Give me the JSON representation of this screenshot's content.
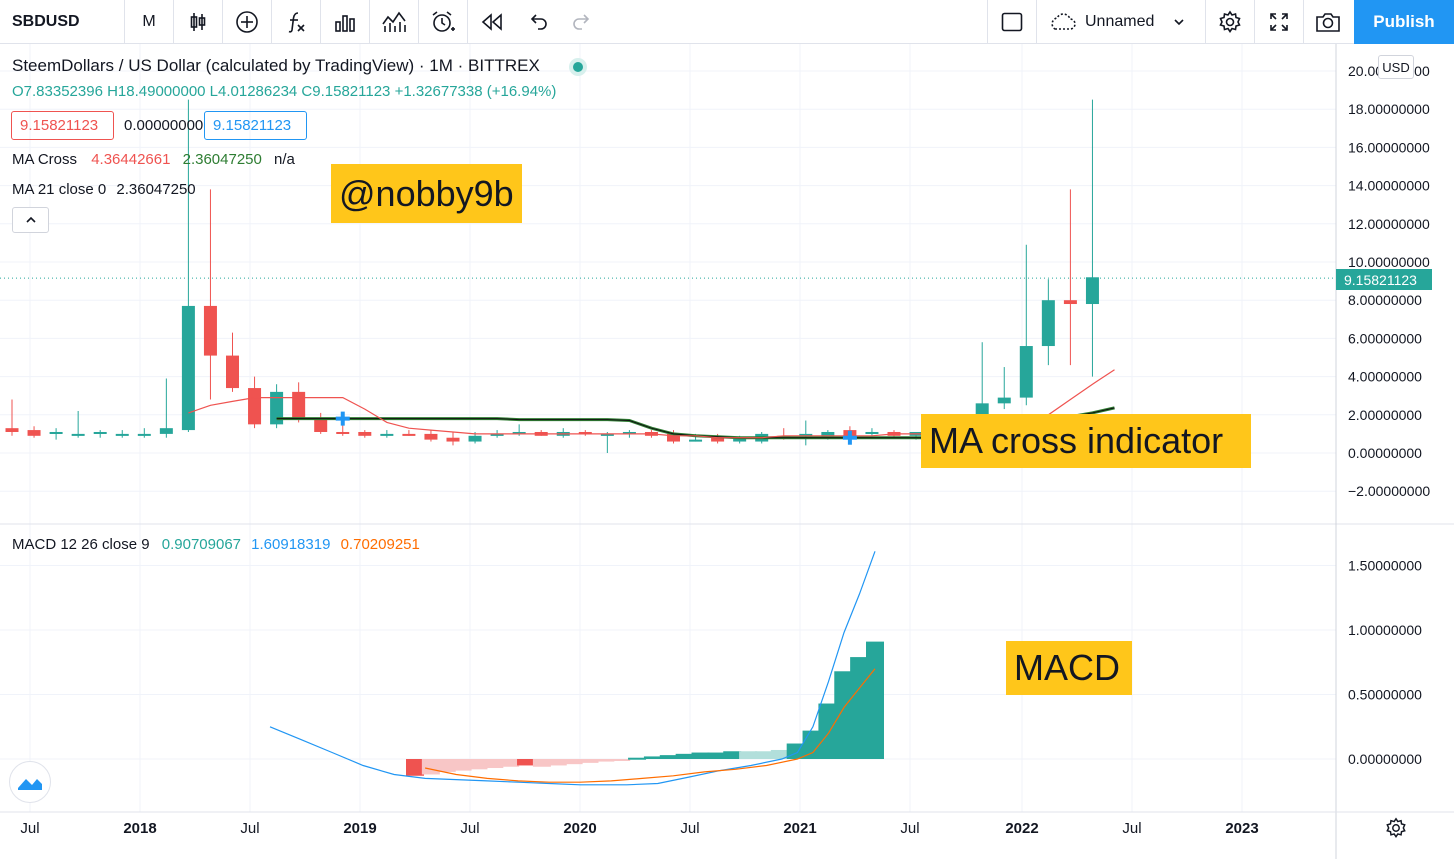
{
  "toolbar": {
    "symbol": "SBDUSD",
    "interval": "M",
    "layout_name": "Unnamed",
    "publish_label": "Publish"
  },
  "legend": {
    "title": "SteemDollars / US Dollar (calculated by TradingView) · 1M · BITTREX",
    "ohlc": "O7.83352396 H18.49000000 L4.01286234 C9.15821123 +1.32677338 (+16.94%)",
    "bid": "9.15821123",
    "spread": "0.00000000",
    "ask": "9.15821123",
    "ma_cross_name": "MA Cross",
    "ma_cross_v1": "4.36442661",
    "ma_cross_v2": "2.36047250",
    "ma_cross_v3": "n/a",
    "ma21_name": "MA 21 close 0",
    "ma21_value": "2.36047250",
    "macd_name": "MACD 12 26 close 9",
    "macd_v1": "0.90709067",
    "macd_v2": "1.60918319",
    "macd_v3": "0.70209251"
  },
  "annotations": {
    "author": "@nobby9b",
    "ma_note": "MA cross indicator",
    "macd_note": "MACD"
  },
  "price_axis": {
    "currency": "USD",
    "last_price": "9.15821123",
    "ticks": [
      "20.00000000",
      "18.00000000",
      "16.00000000",
      "14.00000000",
      "12.00000000",
      "10.00000000",
      "8.00000000",
      "6.00000000",
      "4.00000000",
      "2.00000000",
      "0.00000000",
      "−2.00000000"
    ],
    "macd_ticks": [
      "1.50000000",
      "1.00000000",
      "0.50000000",
      "0.00000000"
    ]
  },
  "time_axis": {
    "labels": [
      "Jul",
      "2018",
      "Jul",
      "2019",
      "Jul",
      "2020",
      "Jul",
      "2021",
      "Jul",
      "2022",
      "Jul",
      "2023"
    ]
  },
  "colors": {
    "up": "#26a69a",
    "down": "#ef5350",
    "ma_fast": "#ef5350",
    "ma_slow": "#2e7d32",
    "macd_line": "#2196f3",
    "signal_line": "#ff6d00",
    "accent": "#2196f3",
    "note_bg": "#ffc61a"
  },
  "chart_data": [
    {
      "type": "candlestick",
      "title": "SteemDollars / US Dollar (calculated by TradingView)",
      "interval": "1M",
      "ylim": [
        -3,
        21
      ],
      "candles": [
        {
          "t": "2017-04",
          "o": 1.3,
          "h": 2.8,
          "l": 0.9,
          "c": 1.1
        },
        {
          "t": "2017-05",
          "o": 1.2,
          "h": 1.4,
          "l": 0.8,
          "c": 0.9
        },
        {
          "t": "2017-06",
          "o": 1.0,
          "h": 1.3,
          "l": 0.7,
          "c": 1.1
        },
        {
          "t": "2017-07",
          "o": 1.0,
          "h": 2.2,
          "l": 0.8,
          "c": 1.0
        },
        {
          "t": "2017-08",
          "o": 1.0,
          "h": 1.2,
          "l": 0.8,
          "c": 1.1
        },
        {
          "t": "2017-09",
          "o": 1.0,
          "h": 1.2,
          "l": 0.8,
          "c": 1.0
        },
        {
          "t": "2017-10",
          "o": 1.0,
          "h": 1.3,
          "l": 0.8,
          "c": 1.0
        },
        {
          "t": "2017-11",
          "o": 1.0,
          "h": 3.9,
          "l": 0.8,
          "c": 1.3
        },
        {
          "t": "2017-12",
          "o": 1.2,
          "h": 18.5,
          "l": 1.1,
          "c": 7.7
        },
        {
          "t": "2018-01",
          "o": 7.7,
          "h": 13.8,
          "l": 2.8,
          "c": 5.1
        },
        {
          "t": "2018-02",
          "o": 5.1,
          "h": 6.3,
          "l": 3.2,
          "c": 3.4
        },
        {
          "t": "2018-03",
          "o": 3.4,
          "h": 4.0,
          "l": 1.3,
          "c": 1.5
        },
        {
          "t": "2018-04",
          "o": 1.5,
          "h": 3.6,
          "l": 1.3,
          "c": 3.2
        },
        {
          "t": "2018-05",
          "o": 3.2,
          "h": 3.7,
          "l": 1.6,
          "c": 1.8
        },
        {
          "t": "2018-06",
          "o": 1.8,
          "h": 2.1,
          "l": 1.0,
          "c": 1.1
        },
        {
          "t": "2018-07",
          "o": 1.1,
          "h": 1.5,
          "l": 0.9,
          "c": 1.0
        },
        {
          "t": "2018-08",
          "o": 1.1,
          "h": 1.2,
          "l": 0.8,
          "c": 0.9
        },
        {
          "t": "2018-09",
          "o": 0.9,
          "h": 1.2,
          "l": 0.8,
          "c": 1.0
        },
        {
          "t": "2018-10",
          "o": 1.0,
          "h": 1.2,
          "l": 0.9,
          "c": 0.9
        },
        {
          "t": "2018-11",
          "o": 1.0,
          "h": 1.2,
          "l": 0.6,
          "c": 0.7
        },
        {
          "t": "2018-12",
          "o": 0.8,
          "h": 1.1,
          "l": 0.4,
          "c": 0.6
        },
        {
          "t": "2019-01",
          "o": 0.6,
          "h": 1.1,
          "l": 0.5,
          "c": 0.9
        },
        {
          "t": "2019-02",
          "o": 0.9,
          "h": 1.2,
          "l": 0.8,
          "c": 1.0
        },
        {
          "t": "2019-03",
          "o": 1.0,
          "h": 1.5,
          "l": 0.9,
          "c": 1.1
        },
        {
          "t": "2019-04",
          "o": 1.1,
          "h": 1.2,
          "l": 0.9,
          "c": 0.9
        },
        {
          "t": "2019-05",
          "o": 0.9,
          "h": 1.3,
          "l": 0.8,
          "c": 1.1
        },
        {
          "t": "2019-06",
          "o": 1.1,
          "h": 1.2,
          "l": 0.9,
          "c": 1.0
        },
        {
          "t": "2019-07",
          "o": 0.9,
          "h": 1.1,
          "l": 0.0,
          "c": 1.0
        },
        {
          "t": "2019-08",
          "o": 1.0,
          "h": 1.2,
          "l": 0.8,
          "c": 1.1
        },
        {
          "t": "2019-09",
          "o": 1.1,
          "h": 1.2,
          "l": 0.8,
          "c": 0.9
        },
        {
          "t": "2019-10",
          "o": 1.0,
          "h": 1.2,
          "l": 0.5,
          "c": 0.6
        },
        {
          "t": "2019-11",
          "o": 0.7,
          "h": 1.0,
          "l": 0.6,
          "c": 0.7
        },
        {
          "t": "2019-12",
          "o": 0.8,
          "h": 1.0,
          "l": 0.5,
          "c": 0.6
        },
        {
          "t": "2020-01",
          "o": 0.6,
          "h": 0.9,
          "l": 0.5,
          "c": 0.8
        },
        {
          "t": "2020-02",
          "o": 0.6,
          "h": 1.1,
          "l": 0.5,
          "c": 1.0
        },
        {
          "t": "2020-03",
          "o": 0.9,
          "h": 1.3,
          "l": 0.7,
          "c": 0.8
        },
        {
          "t": "2020-04",
          "o": 0.9,
          "h": 1.7,
          "l": 0.4,
          "c": 1.0
        },
        {
          "t": "2020-05",
          "o": 0.8,
          "h": 1.2,
          "l": 0.7,
          "c": 1.1
        },
        {
          "t": "2020-06",
          "o": 1.2,
          "h": 1.4,
          "l": 0.8,
          "c": 0.9
        },
        {
          "t": "2020-07",
          "o": 1.0,
          "h": 1.3,
          "l": 0.9,
          "c": 1.1
        },
        {
          "t": "2020-08",
          "o": 1.1,
          "h": 1.2,
          "l": 0.8,
          "c": 0.9
        },
        {
          "t": "2020-09",
          "o": 0.9,
          "h": 1.1,
          "l": 0.7,
          "c": 1.1
        },
        {
          "t": "2020-10",
          "o": 1.1,
          "h": 1.3,
          "l": 0.8,
          "c": 1.0
        },
        {
          "t": "2020-11",
          "o": 1.0,
          "h": 1.2,
          "l": 0.8,
          "c": 1.2
        },
        {
          "t": "2020-12",
          "o": 1.1,
          "h": 5.8,
          "l": 0.8,
          "c": 2.6
        },
        {
          "t": "2021-01",
          "o": 2.6,
          "h": 4.5,
          "l": 2.3,
          "c": 2.9
        },
        {
          "t": "2021-02",
          "o": 2.9,
          "h": 10.9,
          "l": 2.5,
          "c": 5.6
        },
        {
          "t": "2021-03",
          "o": 5.6,
          "h": 9.1,
          "l": 4.6,
          "c": 8.0
        },
        {
          "t": "2021-04",
          "o": 8.0,
          "h": 13.8,
          "l": 4.6,
          "c": 7.8
        },
        {
          "t": "2021-05",
          "o": 7.8,
          "h": 18.5,
          "l": 4.0,
          "c": 9.2
        }
      ],
      "series": [
        {
          "name": "MA Cross",
          "values": [
            [
              8,
              2.1
            ],
            [
              9,
              2.5
            ],
            [
              10,
              2.7
            ],
            [
              11,
              2.9
            ],
            [
              12,
              2.9
            ],
            [
              13,
              2.9
            ],
            [
              14,
              2.9
            ],
            [
              15,
              2.9
            ],
            [
              16,
              2.3
            ],
            [
              17,
              1.6
            ],
            [
              18,
              1.3
            ],
            [
              19,
              1.2
            ],
            [
              20,
              1.1
            ],
            [
              21,
              1.0
            ],
            [
              22,
              1.0
            ],
            [
              23,
              1.0
            ],
            [
              24,
              1.0
            ],
            [
              25,
              1.0
            ],
            [
              26,
              1.0
            ],
            [
              27,
              1.0
            ],
            [
              28,
              1.0
            ],
            [
              29,
              1.0
            ],
            [
              30,
              0.9
            ],
            [
              31,
              0.9
            ],
            [
              32,
              0.8
            ],
            [
              33,
              0.8
            ],
            [
              34,
              0.8
            ],
            [
              35,
              0.9
            ],
            [
              36,
              0.9
            ],
            [
              37,
              0.9
            ],
            [
              38,
              0.9
            ],
            [
              39,
              0.9
            ],
            [
              40,
              1.0
            ],
            [
              41,
              1.0
            ],
            [
              42,
              1.0
            ],
            [
              43,
              1.0
            ],
            [
              44,
              1.0
            ],
            [
              45,
              1.2
            ],
            [
              46,
              1.5
            ],
            [
              47,
              2.0
            ],
            [
              48,
              2.8
            ],
            [
              49,
              3.6
            ],
            [
              50,
              4.36
            ]
          ]
        },
        {
          "name": "MA 21 close 0",
          "values": [
            [
              12,
              1.8
            ],
            [
              13,
              1.8
            ],
            [
              14,
              1.8
            ],
            [
              15,
              1.8
            ],
            [
              16,
              1.8
            ],
            [
              17,
              1.8
            ],
            [
              18,
              1.8
            ],
            [
              19,
              1.8
            ],
            [
              20,
              1.8
            ],
            [
              21,
              1.8
            ],
            [
              22,
              1.8
            ],
            [
              23,
              1.75
            ],
            [
              24,
              1.75
            ],
            [
              25,
              1.75
            ],
            [
              26,
              1.75
            ],
            [
              27,
              1.75
            ],
            [
              28,
              1.7
            ],
            [
              29,
              1.3
            ],
            [
              30,
              1.0
            ],
            [
              31,
              0.9
            ],
            [
              32,
              0.85
            ],
            [
              33,
              0.8
            ],
            [
              34,
              0.8
            ],
            [
              35,
              0.8
            ],
            [
              36,
              0.8
            ],
            [
              37,
              0.8
            ],
            [
              38,
              0.8
            ],
            [
              39,
              0.8
            ],
            [
              40,
              0.8
            ],
            [
              41,
              0.8
            ],
            [
              42,
              0.8
            ],
            [
              43,
              0.85
            ],
            [
              44,
              0.9
            ],
            [
              45,
              1.1
            ],
            [
              46,
              1.3
            ],
            [
              47,
              1.6
            ],
            [
              48,
              1.9
            ],
            [
              49,
              2.1
            ],
            [
              50,
              2.36
            ]
          ]
        }
      ],
      "markers": [
        {
          "index": 15,
          "value": 1.8
        },
        {
          "index": 38,
          "value": 0.8
        }
      ]
    },
    {
      "type": "macd",
      "title": "MACD 12 26 close 9",
      "ylim": [
        -0.35,
        1.75
      ],
      "macd": [
        [
          15,
          0.25
        ],
        [
          17,
          0.15
        ],
        [
          19,
          0.05
        ],
        [
          21,
          -0.05
        ],
        [
          23,
          -0.12
        ],
        [
          25,
          -0.15
        ],
        [
          27,
          -0.16
        ],
        [
          29,
          -0.17
        ],
        [
          31,
          -0.18
        ],
        [
          33,
          -0.19
        ],
        [
          35,
          -0.2
        ],
        [
          36,
          -0.2
        ],
        [
          37,
          -0.2
        ],
        [
          38,
          -0.2
        ],
        [
          40,
          -0.19
        ],
        [
          42,
          -0.14
        ],
        [
          44,
          -0.09
        ],
        [
          46,
          -0.05
        ],
        [
          48,
          0.0
        ],
        [
          49,
          0.05
        ],
        [
          50,
          0.25
        ],
        [
          51,
          0.6
        ],
        [
          52,
          0.98
        ],
        [
          53,
          1.28
        ],
        [
          54,
          1.61
        ]
      ],
      "signal": [
        [
          25,
          -0.07
        ],
        [
          27,
          -0.12
        ],
        [
          29,
          -0.15
        ],
        [
          31,
          -0.17
        ],
        [
          33,
          -0.18
        ],
        [
          35,
          -0.18
        ],
        [
          37,
          -0.17
        ],
        [
          39,
          -0.15
        ],
        [
          41,
          -0.13
        ],
        [
          43,
          -0.1
        ],
        [
          45,
          -0.08
        ],
        [
          47,
          -0.05
        ],
        [
          49,
          0.0
        ],
        [
          50,
          0.05
        ],
        [
          51,
          0.2
        ],
        [
          52,
          0.4
        ],
        [
          53,
          0.55
        ],
        [
          54,
          0.7
        ]
      ],
      "histogram": [
        {
          "i": 25,
          "v": -0.13,
          "c": "#ef5350"
        },
        {
          "i": 26,
          "v": -0.12,
          "c": "#f8c6c6"
        },
        {
          "i": 27,
          "v": -0.1,
          "c": "#f8c6c6"
        },
        {
          "i": 28,
          "v": -0.09,
          "c": "#f8c6c6"
        },
        {
          "i": 29,
          "v": -0.08,
          "c": "#f8c6c6"
        },
        {
          "i": 30,
          "v": -0.07,
          "c": "#f8c6c6"
        },
        {
          "i": 31,
          "v": -0.06,
          "c": "#f8c6c6"
        },
        {
          "i": 32,
          "v": -0.05,
          "c": "#ef5350"
        },
        {
          "i": 33,
          "v": -0.06,
          "c": "#f8c6c6"
        },
        {
          "i": 34,
          "v": -0.05,
          "c": "#f8c6c6"
        },
        {
          "i": 35,
          "v": -0.04,
          "c": "#f8c6c6"
        },
        {
          "i": 36,
          "v": -0.03,
          "c": "#f8c6c6"
        },
        {
          "i": 37,
          "v": -0.02,
          "c": "#f8c6c6"
        },
        {
          "i": 38,
          "v": -0.01,
          "c": "#f8c6c6"
        },
        {
          "i": 39,
          "v": 0.01,
          "c": "#26a69a"
        },
        {
          "i": 40,
          "v": 0.02,
          "c": "#26a69a"
        },
        {
          "i": 41,
          "v": 0.03,
          "c": "#26a69a"
        },
        {
          "i": 42,
          "v": 0.04,
          "c": "#26a69a"
        },
        {
          "i": 43,
          "v": 0.05,
          "c": "#26a69a"
        },
        {
          "i": 44,
          "v": 0.05,
          "c": "#26a69a"
        },
        {
          "i": 45,
          "v": 0.06,
          "c": "#26a69a"
        },
        {
          "i": 46,
          "v": 0.06,
          "c": "#b2dfdb"
        },
        {
          "i": 47,
          "v": 0.06,
          "c": "#b2dfdb"
        },
        {
          "i": 48,
          "v": 0.07,
          "c": "#b2dfdb"
        },
        {
          "i": 49,
          "v": 0.12,
          "c": "#26a69a"
        },
        {
          "i": 50,
          "v": 0.22,
          "c": "#26a69a"
        },
        {
          "i": 51,
          "v": 0.43,
          "c": "#26a69a"
        },
        {
          "i": 52,
          "v": 0.68,
          "c": "#26a69a"
        },
        {
          "i": 53,
          "v": 0.79,
          "c": "#26a69a"
        },
        {
          "i": 54,
          "v": 0.91,
          "c": "#26a69a"
        }
      ]
    }
  ]
}
